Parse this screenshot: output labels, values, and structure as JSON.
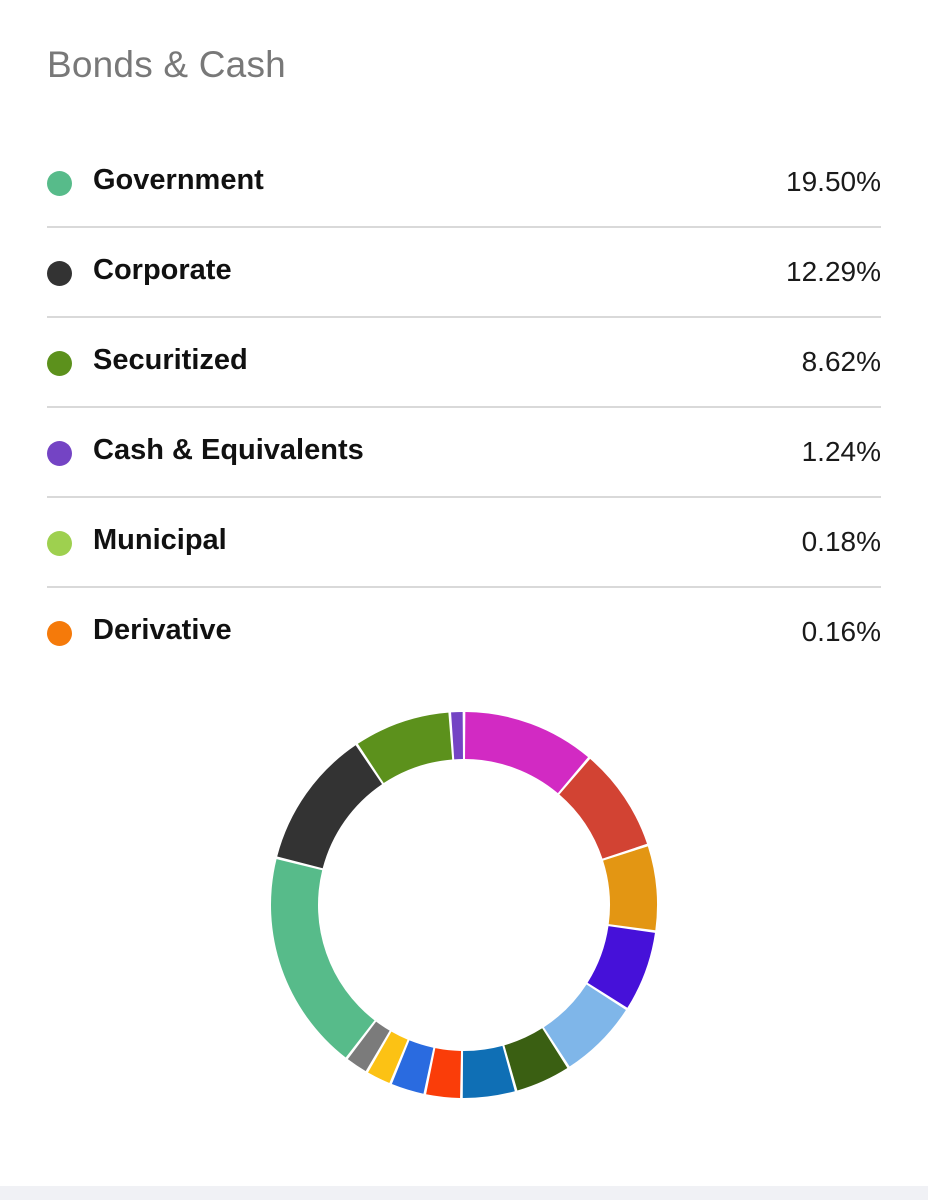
{
  "section": {
    "title": "Bonds & Cash"
  },
  "legend": [
    {
      "label": "Government",
      "value": "19.50%",
      "color": "#57bb8a"
    },
    {
      "label": "Corporate",
      "value": "12.29%",
      "color": "#333333"
    },
    {
      "label": "Securitized",
      "value": "8.62%",
      "color": "#5c911c"
    },
    {
      "label": "Cash & Equivalents",
      "value": "1.24%",
      "color": "#7444c4"
    },
    {
      "label": "Municipal",
      "value": "0.18%",
      "color": "#9ed04f"
    },
    {
      "label": "Derivative",
      "value": "0.16%",
      "color": "#f57a0a"
    }
  ],
  "chart_data": {
    "type": "pie",
    "donut": true,
    "start_angle_deg": 0,
    "direction": "clockwise",
    "segments": [
      {
        "value": 11.8,
        "color": "#d22ac3"
      },
      {
        "value": 9.2,
        "color": "#d24333"
      },
      {
        "value": 7.6,
        "color": "#e39613"
      },
      {
        "value": 7.2,
        "color": "#4611d9"
      },
      {
        "value": 7.2,
        "color": "#7fb6e9"
      },
      {
        "value": 5.0,
        "color": "#3a5f12"
      },
      {
        "value": 4.8,
        "color": "#0f6fb5"
      },
      {
        "value": 3.2,
        "color": "#fa3d09"
      },
      {
        "value": 3.1,
        "color": "#2a6be0"
      },
      {
        "value": 2.3,
        "color": "#fcc214"
      },
      {
        "value": 2.1,
        "color": "#7b7b7b"
      },
      {
        "value": 19.5,
        "color": "#57bb8a"
      },
      {
        "value": 12.29,
        "color": "#333333"
      },
      {
        "value": 8.62,
        "color": "#5c911c"
      },
      {
        "value": 1.24,
        "color": "#7444c4"
      }
    ]
  }
}
